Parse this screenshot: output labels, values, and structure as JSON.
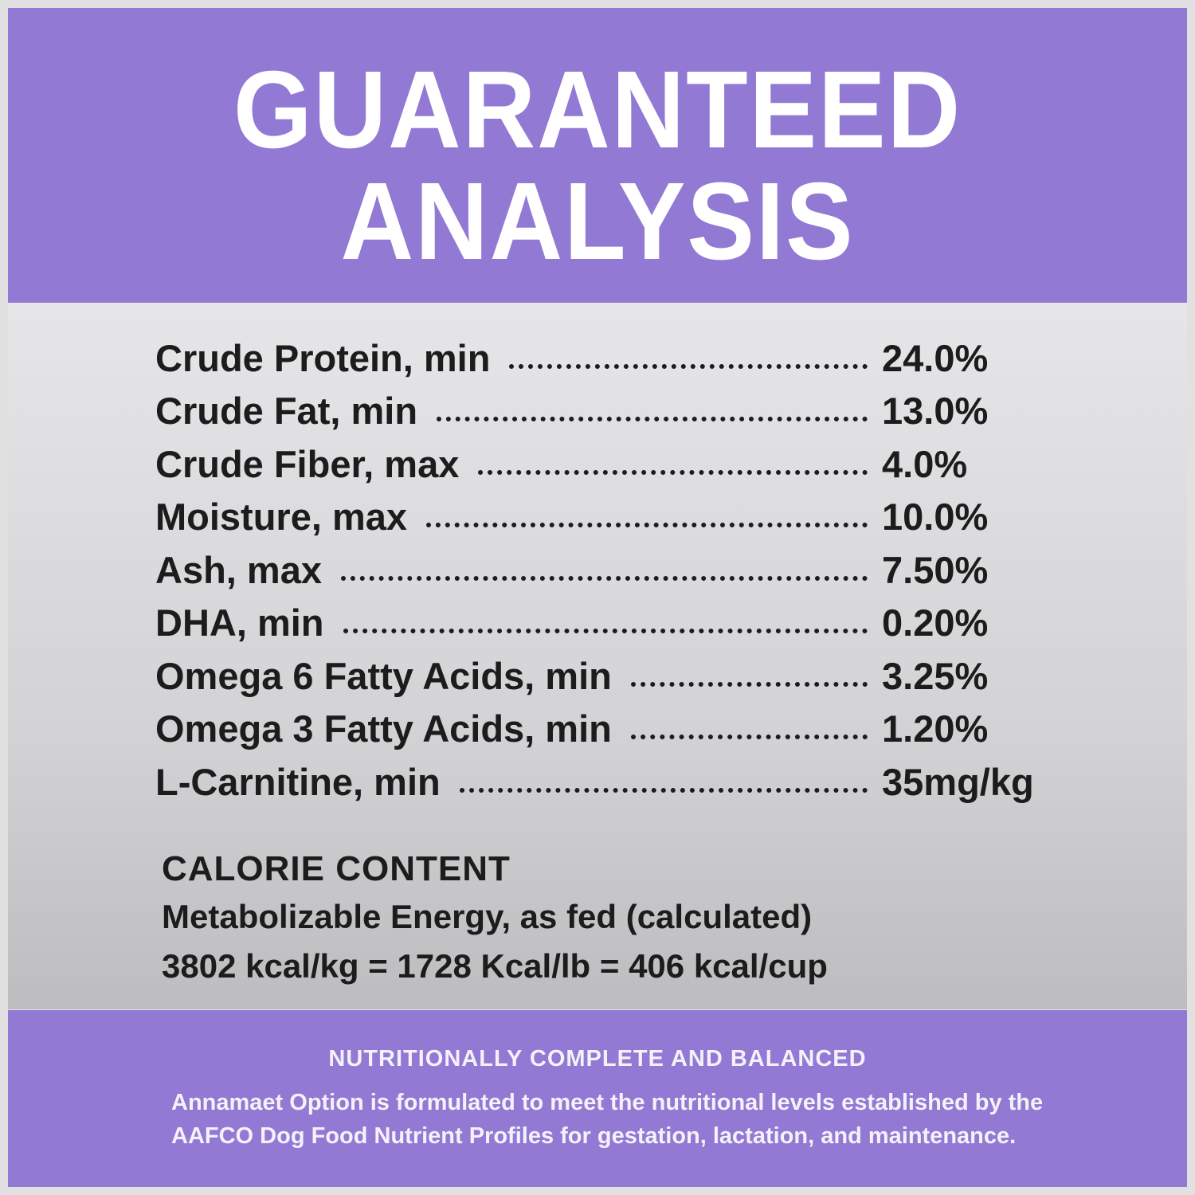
{
  "header": {
    "title": [
      "GUARANTEED",
      "ANALYSIS"
    ]
  },
  "analysis": {
    "rows": [
      [
        "Crude Protein, min",
        "24.0%"
      ],
      [
        "Crude Fat, min",
        "13.0%"
      ],
      [
        "Crude Fiber, max",
        "4.0%"
      ],
      [
        "Moisture, max",
        "10.0%"
      ],
      [
        "Ash, max",
        "7.50%"
      ],
      [
        "DHA, min",
        "0.20%"
      ],
      [
        "Omega 6 Fatty Acids, min",
        "3.25%"
      ],
      [
        "Omega 3 Fatty Acids, min",
        "1.20%"
      ],
      [
        "L-Carnitine, min",
        "35mg/kg"
      ]
    ]
  },
  "calorie": {
    "heading": "CALORIE CONTENT",
    "lines": [
      "Metabolizable Energy, as fed (calculated)",
      "3802 kcal/kg = 1728 Kcal/lb = 406 kcal/cup"
    ]
  },
  "footer": {
    "heading": "NUTRITIONALLY COMPLETE AND BALANCED",
    "lines": [
      "Annamaet Option is formulated to meet the nutritional levels established by the",
      "AAFCO Dog Food Nutrient Profiles for gestation, lactation, and maintenance."
    ]
  }
}
